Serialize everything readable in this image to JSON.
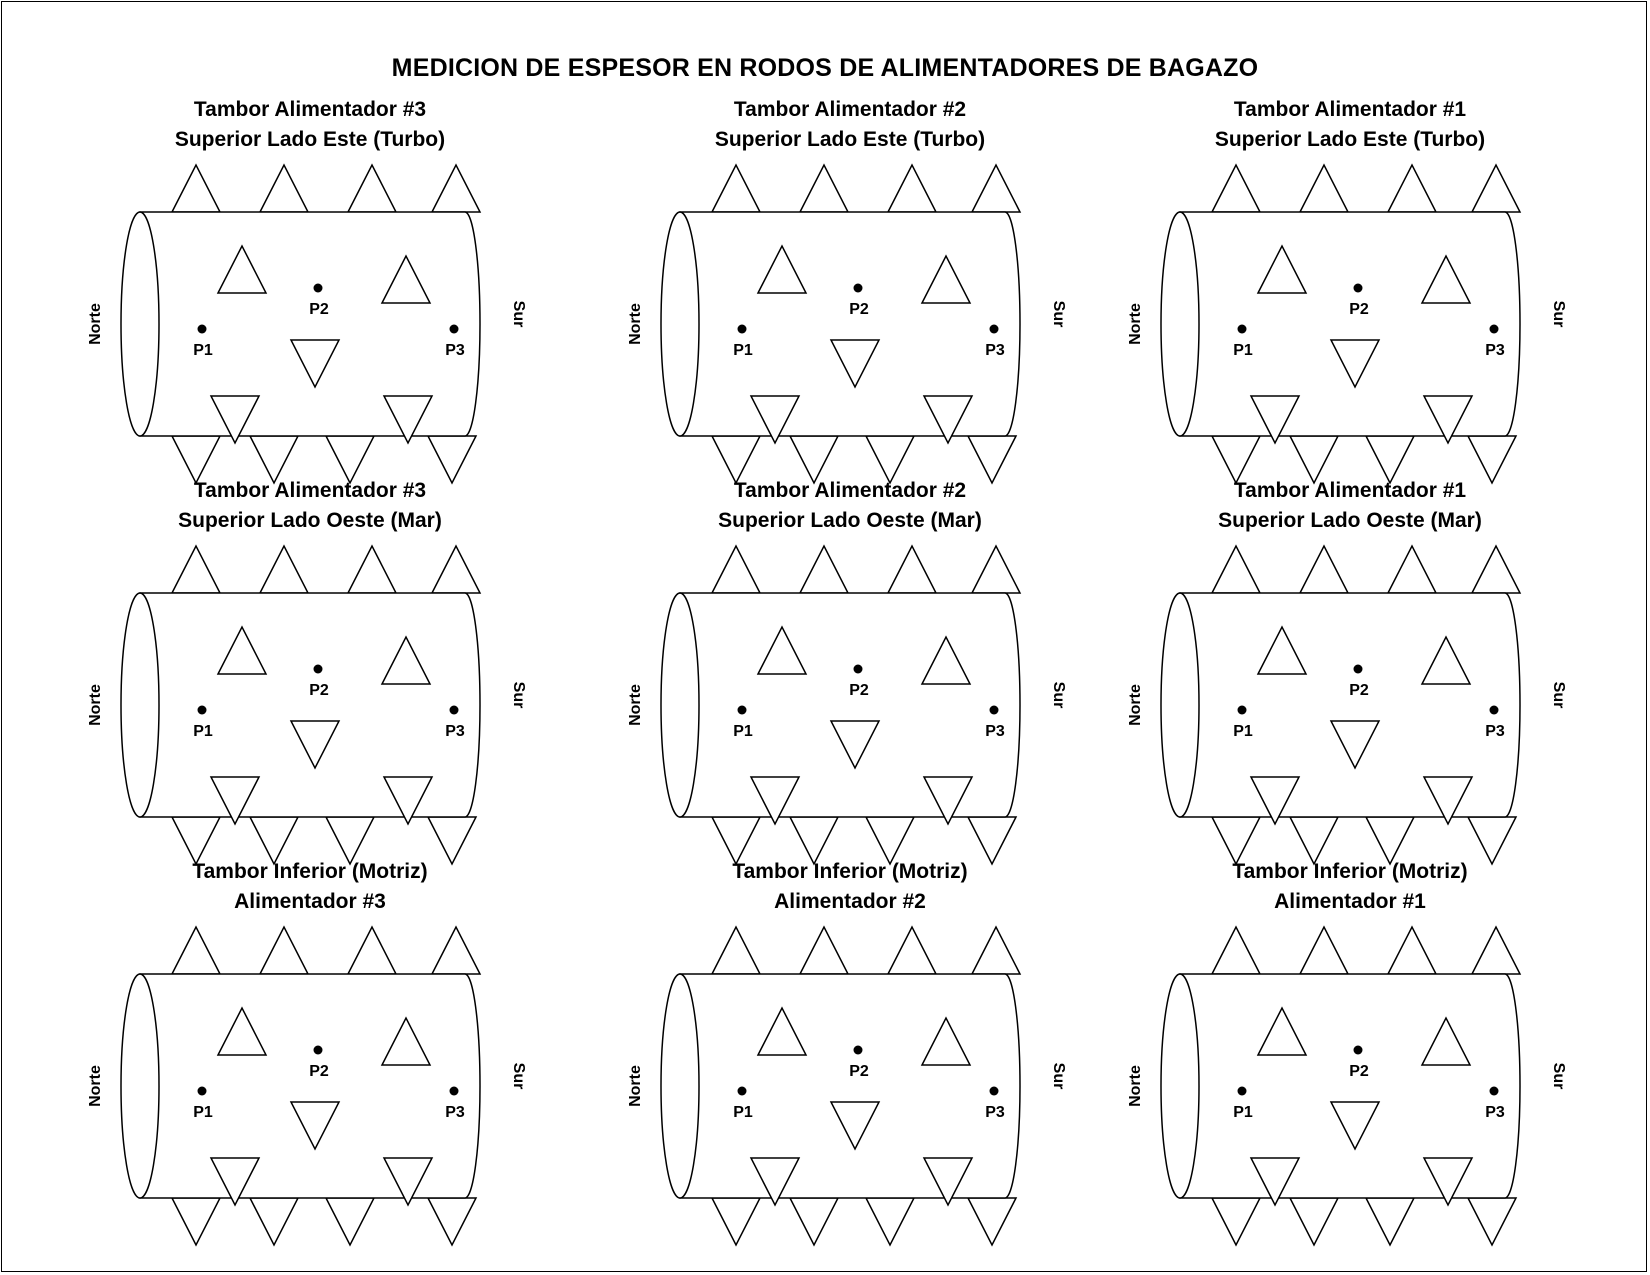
{
  "title": "MEDICION DE ESPESOR EN RODOS DE ALIMENTADORES DE BAGAZO",
  "panels": [
    {
      "title_lines": [
        "Tambor Alimentador #3",
        "Superior Lado Este (Turbo)"
      ],
      "left_label": "Norte",
      "right_label": "Sur",
      "points": [
        "P1",
        "P2",
        "P3"
      ]
    },
    {
      "title_lines": [
        "Tambor Alimentador #2",
        "Superior Lado Este (Turbo)"
      ],
      "left_label": "Norte",
      "right_label": "Sur",
      "points": [
        "P1",
        "P2",
        "P3"
      ]
    },
    {
      "title_lines": [
        "Tambor Alimentador #1",
        "Superior Lado Este (Turbo)"
      ],
      "left_label": "Norte",
      "right_label": "Sur",
      "points": [
        "P1",
        "P2",
        "P3"
      ]
    },
    {
      "title_lines": [
        "Tambor Alimentador #3",
        "Superior Lado Oeste (Mar)"
      ],
      "left_label": "Norte",
      "right_label": "Sur",
      "points": [
        "P1",
        "P2",
        "P3"
      ]
    },
    {
      "title_lines": [
        "Tambor Alimentador #2",
        "Superior Lado Oeste (Mar)"
      ],
      "left_label": "Norte",
      "right_label": "Sur",
      "points": [
        "P1",
        "P2",
        "P3"
      ]
    },
    {
      "title_lines": [
        "Tambor Alimentador #1",
        "Superior Lado Oeste (Mar)"
      ],
      "left_label": "Norte",
      "right_label": "Sur",
      "points": [
        "P1",
        "P2",
        "P3"
      ]
    },
    {
      "title_lines": [
        "Tambor Inferior (Motriz)",
        "Alimentador #3"
      ],
      "left_label": "Norte",
      "right_label": "Sur",
      "points": [
        "P1",
        "P2",
        "P3"
      ]
    },
    {
      "title_lines": [
        "Tambor Inferior (Motriz)",
        "Alimentador #2"
      ],
      "left_label": "Norte",
      "right_label": "Sur",
      "points": [
        "P1",
        "P2",
        "P3"
      ]
    },
    {
      "title_lines": [
        "Tambor Inferior (Motriz)",
        "Alimentador #1"
      ],
      "left_label": "Norte",
      "right_label": "Sur",
      "points": [
        "P1",
        "P2",
        "P3"
      ]
    }
  ]
}
